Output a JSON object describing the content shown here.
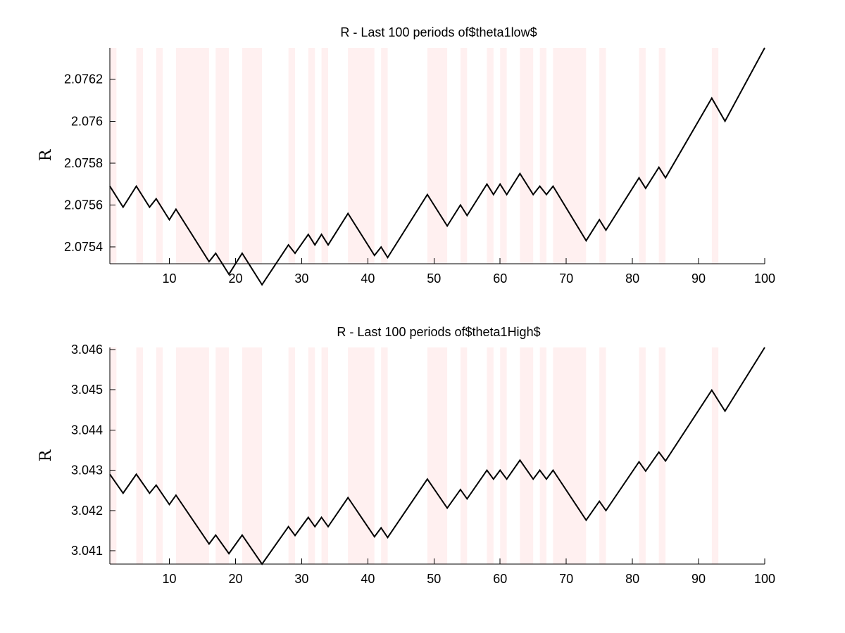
{
  "chart_data": [
    {
      "type": "line",
      "title": "R - Last 100 periods of$theta1low$",
      "xlabel": "",
      "ylabel": "R",
      "xlim": [
        1,
        100
      ],
      "ylim": [
        2.07532,
        2.07635
      ],
      "xticks": [
        10,
        20,
        30,
        40,
        50,
        60,
        70,
        80,
        90,
        100
      ],
      "xtick_labels": [
        "10",
        "20",
        "30",
        "40",
        "50",
        "60",
        "70",
        "80",
        "90",
        "100"
      ],
      "yticks": [
        2.0754,
        2.0756,
        2.0758,
        2.076,
        2.0762
      ],
      "ytick_labels": [
        "2.0754",
        "2.0756",
        "2.0758",
        "2.076",
        "2.0762"
      ],
      "shaded_color": "#fff0f0",
      "shaded_ranges": [
        [
          1,
          2
        ],
        [
          5,
          6
        ],
        [
          8,
          9
        ],
        [
          11,
          16
        ],
        [
          17,
          19
        ],
        [
          21,
          24
        ],
        [
          28,
          29
        ],
        [
          31,
          32
        ],
        [
          33,
          34
        ],
        [
          37,
          41
        ],
        [
          42,
          43
        ],
        [
          49,
          52
        ],
        [
          54,
          55
        ],
        [
          58,
          59
        ],
        [
          60,
          61
        ],
        [
          63,
          65
        ],
        [
          66,
          67
        ],
        [
          68,
          73
        ],
        [
          75,
          76
        ],
        [
          81,
          82
        ],
        [
          84,
          85
        ],
        [
          92,
          93
        ]
      ],
      "series": [
        {
          "x": [
            1,
            3,
            5,
            7,
            8,
            10,
            11,
            16,
            17,
            19,
            21,
            24,
            28,
            29,
            31,
            32,
            33,
            34,
            37,
            41,
            42,
            43,
            49,
            52,
            54,
            55,
            58,
            59,
            60,
            61,
            63,
            65,
            66,
            67,
            68,
            73,
            75,
            76,
            81,
            82,
            84,
            85,
            92,
            94,
            100
          ],
          "y": [
            2.07569,
            2.07559,
            2.07569,
            2.07559,
            2.07563,
            2.07553,
            2.07558,
            2.07533,
            2.07537,
            2.07527,
            2.07537,
            2.07522,
            2.07541,
            2.07537,
            2.07546,
            2.07541,
            2.07546,
            2.07541,
            2.07556,
            2.07536,
            2.0754,
            2.07535,
            2.07565,
            2.0755,
            2.0756,
            2.07555,
            2.0757,
            2.07565,
            2.0757,
            2.07565,
            2.07575,
            2.07565,
            2.07569,
            2.07565,
            2.07569,
            2.07543,
            2.07553,
            2.07548,
            2.07573,
            2.07568,
            2.07578,
            2.07573,
            2.07611,
            2.076,
            2.07635
          ]
        }
      ]
    },
    {
      "type": "line",
      "title": "R - Last 100 periods of$theta1High$",
      "xlabel": "",
      "ylabel": "R",
      "xlim": [
        1,
        100
      ],
      "ylim": [
        3.04067,
        3.04605
      ],
      "xticks": [
        10,
        20,
        30,
        40,
        50,
        60,
        70,
        80,
        90,
        100
      ],
      "xtick_labels": [
        "10",
        "20",
        "30",
        "40",
        "50",
        "60",
        "70",
        "80",
        "90",
        "100"
      ],
      "yticks": [
        3.041,
        3.042,
        3.043,
        3.044,
        3.045,
        3.046
      ],
      "ytick_labels": [
        "3.041",
        "3.042",
        "3.043",
        "3.044",
        "3.045",
        "3.046"
      ],
      "shaded_color": "#fff0f0",
      "shaded_ranges": [
        [
          1,
          2
        ],
        [
          5,
          6
        ],
        [
          8,
          9
        ],
        [
          11,
          16
        ],
        [
          17,
          19
        ],
        [
          21,
          24
        ],
        [
          28,
          29
        ],
        [
          31,
          32
        ],
        [
          33,
          34
        ],
        [
          37,
          41
        ],
        [
          42,
          43
        ],
        [
          49,
          52
        ],
        [
          54,
          55
        ],
        [
          58,
          59
        ],
        [
          60,
          61
        ],
        [
          63,
          65
        ],
        [
          66,
          67
        ],
        [
          68,
          73
        ],
        [
          75,
          76
        ],
        [
          81,
          82
        ],
        [
          84,
          85
        ],
        [
          92,
          93
        ]
      ],
      "series": [
        {
          "x": [
            1,
            3,
            5,
            7,
            8,
            10,
            11,
            16,
            17,
            19,
            21,
            24,
            28,
            29,
            31,
            32,
            33,
            34,
            37,
            41,
            42,
            43,
            49,
            52,
            54,
            55,
            58,
            59,
            60,
            61,
            63,
            65,
            66,
            67,
            68,
            73,
            75,
            76,
            81,
            82,
            84,
            85,
            92,
            94,
            100
          ],
          "y": [
            3.0429,
            3.04243,
            3.0429,
            3.04243,
            3.04263,
            3.04215,
            3.04238,
            3.04117,
            3.04139,
            3.04093,
            3.04139,
            3.04067,
            3.0416,
            3.04138,
            3.04183,
            3.0416,
            3.04183,
            3.0416,
            3.04232,
            3.04135,
            3.04157,
            3.04133,
            3.04278,
            3.04206,
            3.04252,
            3.04229,
            3.043,
            3.04278,
            3.043,
            3.04278,
            3.04325,
            3.04278,
            3.043,
            3.04278,
            3.043,
            3.04176,
            3.04223,
            3.042,
            3.04321,
            3.04298,
            3.04345,
            3.04323,
            3.04499,
            3.04447,
            3.04605
          ]
        }
      ]
    }
  ]
}
